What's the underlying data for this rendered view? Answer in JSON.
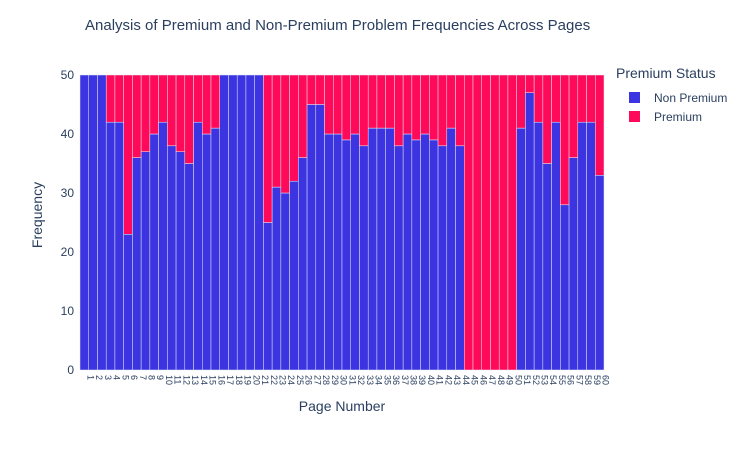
{
  "chart_data": {
    "type": "bar",
    "stacked": true,
    "title": "Analysis of Premium and Non-Premium Problem Frequencies Across Pages",
    "xlabel": "Page Number",
    "ylabel": "Frequency",
    "ylim": [
      0,
      50
    ],
    "yticks": [
      0,
      10,
      20,
      30,
      40,
      50
    ],
    "grid": true,
    "legend_title": "Premium Status",
    "legend_position": "top-right",
    "categories": [
      "1",
      "2",
      "3",
      "4",
      "5",
      "6",
      "7",
      "8",
      "9",
      "10",
      "11",
      "12",
      "13",
      "14",
      "15",
      "16",
      "17",
      "18",
      "19",
      "20",
      "21",
      "22",
      "23",
      "24",
      "25",
      "26",
      "27",
      "28",
      "29",
      "30",
      "31",
      "32",
      "33",
      "34",
      "35",
      "36",
      "37",
      "38",
      "39",
      "40",
      "41",
      "42",
      "43",
      "44",
      "45",
      "46",
      "47",
      "48",
      "49",
      "50",
      "51",
      "52",
      "53",
      "54",
      "55",
      "56",
      "57",
      "58",
      "59",
      "60"
    ],
    "series": [
      {
        "name": "Non Premium",
        "color": "#3b34e0",
        "values": [
          50,
          50,
          50,
          42,
          42,
          23,
          36,
          37,
          40,
          42,
          38,
          37,
          35,
          42,
          40,
          41,
          50,
          50,
          50,
          50,
          50,
          25,
          31,
          30,
          32,
          36,
          45,
          45,
          40,
          40,
          39,
          40,
          38,
          41,
          41,
          41,
          38,
          40,
          39,
          40,
          39,
          38,
          41,
          38,
          0,
          0,
          0,
          0,
          0,
          0,
          41,
          47,
          42,
          35,
          42,
          28,
          36,
          42,
          42,
          33
        ]
      },
      {
        "name": "Premium",
        "color": "#ff0a5a",
        "values": [
          0,
          0,
          0,
          8,
          8,
          27,
          14,
          13,
          10,
          8,
          12,
          13,
          15,
          8,
          10,
          9,
          0,
          0,
          0,
          0,
          0,
          25,
          19,
          20,
          18,
          14,
          5,
          5,
          10,
          10,
          11,
          10,
          12,
          9,
          9,
          9,
          12,
          10,
          11,
          10,
          11,
          12,
          9,
          12,
          50,
          50,
          50,
          50,
          50,
          50,
          9,
          3,
          8,
          15,
          8,
          22,
          14,
          8,
          8,
          17
        ]
      }
    ]
  }
}
